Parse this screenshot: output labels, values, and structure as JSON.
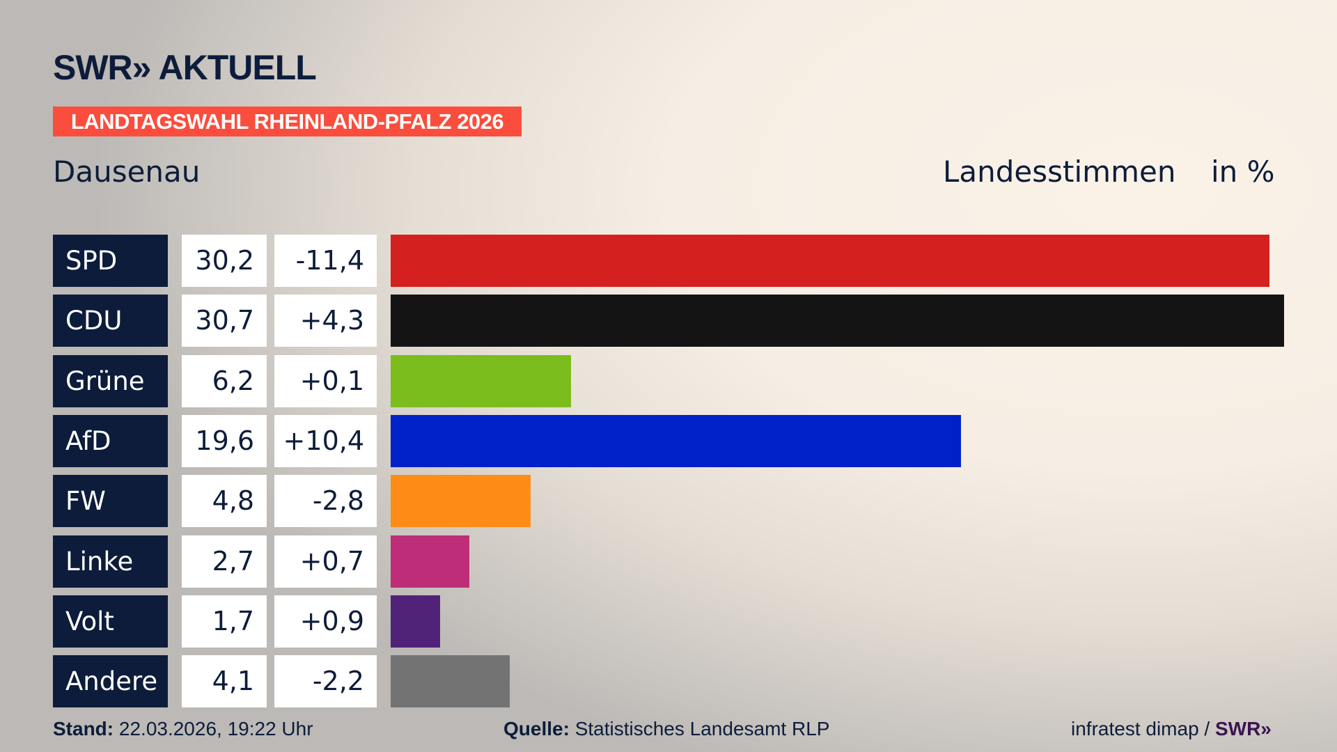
{
  "header": {
    "logo": "SWR» AKTUELL",
    "banner": "LANDTAGSWAHL RHEINLAND-PFALZ 2026",
    "place": "Dausenau",
    "metric": "Landesstimmen",
    "unit": "in %"
  },
  "chart_data": {
    "type": "bar",
    "orientation": "horizontal",
    "categories": [
      "SPD",
      "CDU",
      "Grüne",
      "AfD",
      "FW",
      "Linke",
      "Volt",
      "Andere"
    ],
    "values": [
      30.2,
      30.7,
      6.2,
      19.6,
      4.8,
      2.7,
      1.7,
      4.1
    ],
    "value_labels": [
      "30,2",
      "30,7",
      "6,2",
      "19,6",
      "4,8",
      "2,7",
      "1,7",
      "4,1"
    ],
    "change_labels": [
      "-11,4",
      "+4,3",
      "+0,1",
      "+10,4",
      "-2,8",
      "+0,7",
      "+0,9",
      "-2,2"
    ],
    "colors": [
      "#d52020",
      "#141414",
      "#7abd1c",
      "#0021c8",
      "#ff8c17",
      "#be2d78",
      "#502378",
      "#737373"
    ],
    "xlim": [
      0,
      30.7
    ]
  },
  "footer": {
    "stand_label": "Stand:",
    "stand_value": " 22.03.2026, 19:22 Uhr",
    "source_label": "Quelle:",
    "source_value": " Statistisches Landesamt RLP",
    "credit": "infratest dimap / ",
    "credit_logo": "SWR»"
  }
}
